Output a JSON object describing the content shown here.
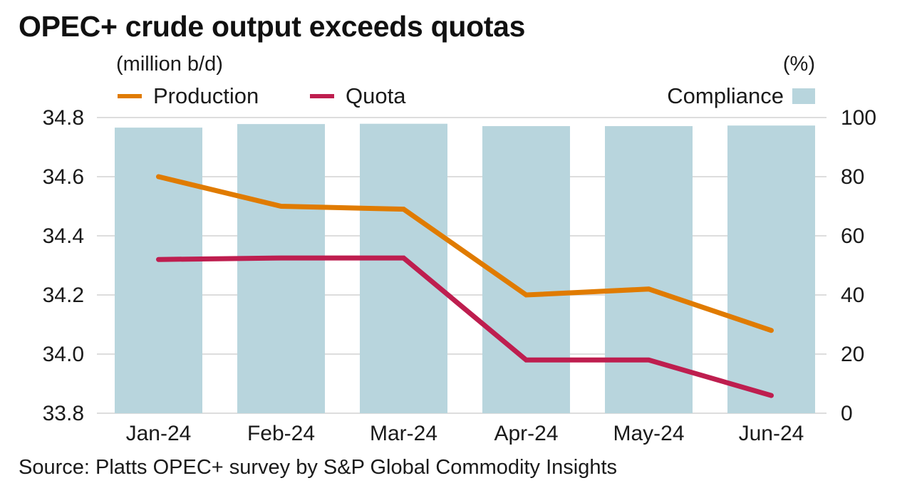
{
  "title": "OPEC+ crude output exceeds quotas",
  "left_unit": "(million b/d)",
  "right_unit": "(%)",
  "source": "Source: Platts OPEC+ survey by S&P Global Commodity Insights",
  "colors": {
    "production": "#E07B00",
    "quota": "#BE1E4F",
    "compliance": "#B8D5DD",
    "grid": "#DDDDDD"
  },
  "legend": {
    "production": "Production",
    "quota": "Quota",
    "compliance": "Compliance"
  },
  "chart_data": {
    "type": "bar+line",
    "title": "OPEC+ crude output exceeds quotas",
    "categories": [
      "Jan-24",
      "Feb-24",
      "Mar-24",
      "Apr-24",
      "May-24",
      "Jun-24"
    ],
    "series": [
      {
        "name": "Production",
        "type": "line",
        "axis": "left",
        "values": [
          34.6,
          34.5,
          34.49,
          34.2,
          34.22,
          34.08
        ]
      },
      {
        "name": "Quota",
        "type": "line",
        "axis": "left",
        "values": [
          34.32,
          34.325,
          34.325,
          33.98,
          33.98,
          33.86
        ]
      },
      {
        "name": "Compliance",
        "type": "bar",
        "axis": "right",
        "values": [
          96.6,
          97.8,
          97.9,
          97.1,
          97.1,
          97.3
        ]
      }
    ],
    "left_axis": {
      "label": "(million b/d)",
      "ylim": [
        33.8,
        34.8
      ],
      "ticks": [
        "34.8",
        "34.6",
        "34.4",
        "34.2",
        "34.0",
        "33.8"
      ],
      "tick_values": [
        34.8,
        34.6,
        34.4,
        34.2,
        34.0,
        33.8
      ]
    },
    "right_axis": {
      "label": "(%)",
      "ylim": [
        0,
        100
      ],
      "ticks": [
        "100",
        "80",
        "60",
        "40",
        "20",
        "0"
      ],
      "tick_values": [
        100,
        80,
        60,
        40,
        20,
        0
      ]
    },
    "grid": true,
    "legend_position": "top"
  }
}
